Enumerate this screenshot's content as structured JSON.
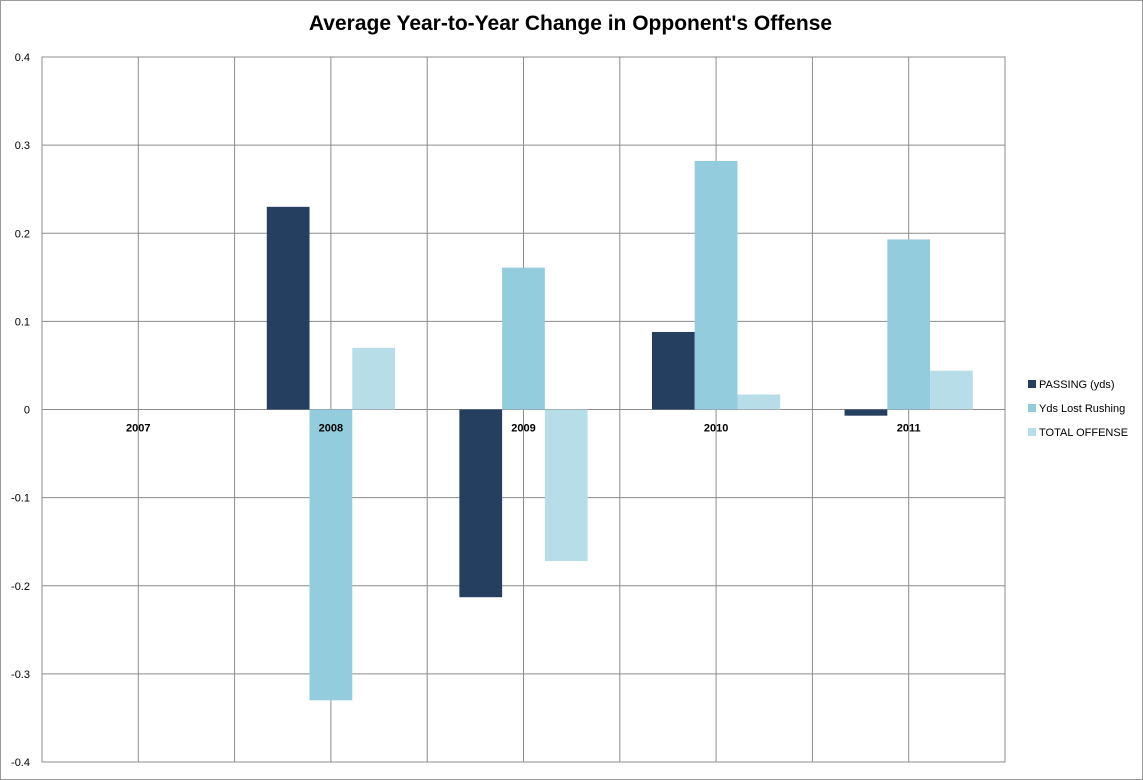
{
  "chart_data": {
    "type": "bar",
    "title": "Average Year-to-Year Change in Opponent's Offense",
    "categories": [
      "2007",
      "2008",
      "2009",
      "2010",
      "2011"
    ],
    "series": [
      {
        "name": "PASSING (yds)",
        "color": "#243f60",
        "values": [
          0,
          0.23,
          -0.213,
          0.088,
          -0.007
        ]
      },
      {
        "name": "Yds Lost Rushing",
        "color": "#93cddd",
        "values": [
          0,
          -0.33,
          0.161,
          0.282,
          0.193
        ]
      },
      {
        "name": "TOTAL OFFENSE",
        "color": "#b7dde8",
        "values": [
          0,
          0.07,
          -0.172,
          0.017,
          0.044
        ]
      }
    ],
    "ylim": [
      -0.4,
      0.4
    ],
    "yticks": [
      "0.4",
      "0.3",
      "0.2",
      "0.1",
      "0",
      "-0.1",
      "-0.2",
      "-0.3",
      "-0.4"
    ],
    "xlabel": "",
    "ylabel": "",
    "grid": true,
    "legend_position": "right"
  }
}
